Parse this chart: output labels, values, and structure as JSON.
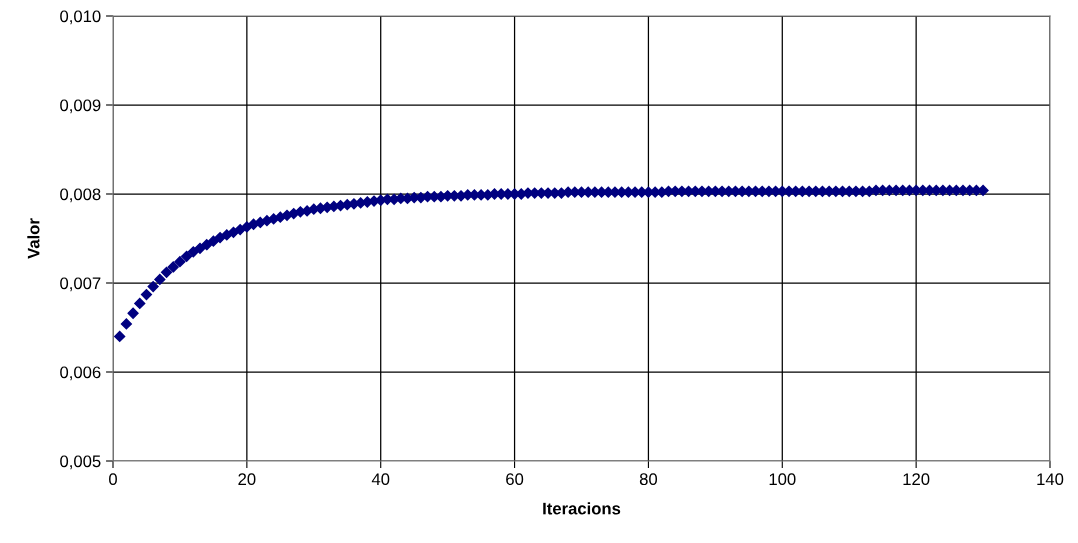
{
  "chart_data": {
    "type": "scatter",
    "xlabel": "Iteracions",
    "ylabel": "Valor",
    "x": [
      1,
      2,
      3,
      4,
      5,
      6,
      7,
      8,
      9,
      10,
      11,
      12,
      13,
      14,
      15,
      16,
      17,
      18,
      19,
      20,
      21,
      22,
      23,
      24,
      25,
      26,
      27,
      28,
      29,
      30,
      31,
      32,
      33,
      34,
      35,
      36,
      37,
      38,
      39,
      40,
      41,
      42,
      43,
      44,
      45,
      46,
      47,
      48,
      49,
      50,
      51,
      52,
      53,
      54,
      55,
      56,
      57,
      58,
      59,
      60,
      61,
      62,
      63,
      64,
      65,
      66,
      67,
      68,
      69,
      70,
      71,
      72,
      73,
      74,
      75,
      76,
      77,
      78,
      79,
      80,
      81,
      82,
      83,
      84,
      85,
      86,
      87,
      88,
      89,
      90,
      91,
      92,
      93,
      94,
      95,
      96,
      97,
      98,
      99,
      100,
      101,
      102,
      103,
      104,
      105,
      106,
      107,
      108,
      109,
      110,
      111,
      112,
      113,
      114,
      115,
      116,
      117,
      118,
      119,
      120,
      121,
      122,
      123,
      124,
      125,
      126,
      127,
      128,
      129,
      130
    ],
    "series": [
      {
        "color": "#000080",
        "values": [
          0.0064,
          0.00654,
          0.00666,
          0.00677,
          0.00687,
          0.00696,
          0.00704,
          0.00712,
          0.00718,
          0.00724,
          0.0073,
          0.00735,
          0.00739,
          0.00743,
          0.00747,
          0.00751,
          0.00754,
          0.00757,
          0.0076,
          0.00763,
          0.00766,
          0.00768,
          0.0077,
          0.00772,
          0.00774,
          0.00776,
          0.00778,
          0.0078,
          0.00781,
          0.00783,
          0.00784,
          0.00785,
          0.00786,
          0.00787,
          0.00788,
          0.00789,
          0.0079,
          0.00791,
          0.00792,
          0.00793,
          0.00794,
          0.00794,
          0.00795,
          0.00795,
          0.00796,
          0.00796,
          0.00797,
          0.00797,
          0.00797,
          0.00798,
          0.00798,
          0.00798,
          0.00799,
          0.00799,
          0.00799,
          0.00799,
          0.008,
          0.008,
          0.008,
          0.008,
          0.008,
          0.00801,
          0.00801,
          0.00801,
          0.00801,
          0.00801,
          0.00801,
          0.00802,
          0.00802,
          0.00802,
          0.00802,
          0.00802,
          0.00802,
          0.00802,
          0.00802,
          0.00802,
          0.00802,
          0.00802,
          0.00802,
          0.00802,
          0.00802,
          0.00802,
          0.00803,
          0.00803,
          0.00803,
          0.00803,
          0.00803,
          0.00803,
          0.00803,
          0.00803,
          0.00803,
          0.00803,
          0.00803,
          0.00803,
          0.00803,
          0.00803,
          0.00803,
          0.00803,
          0.00803,
          0.00803,
          0.00803,
          0.00803,
          0.00803,
          0.00803,
          0.00803,
          0.00803,
          0.00803,
          0.00803,
          0.00803,
          0.00803,
          0.00803,
          0.00803,
          0.00803,
          0.00804,
          0.00804,
          0.00804,
          0.00804,
          0.00804,
          0.00804,
          0.00804,
          0.00804,
          0.00804,
          0.00804,
          0.00804,
          0.00804,
          0.00804,
          0.00804,
          0.00804,
          0.00804,
          0.00804
        ]
      }
    ],
    "marker": "diamond",
    "grid": true,
    "xlim": [
      0,
      140
    ],
    "xticks": [
      0,
      20,
      40,
      60,
      80,
      100,
      120,
      140
    ],
    "ylim": [
      0.005,
      0.01
    ],
    "yticks": [
      {
        "value": 0.005,
        "label": "0,005"
      },
      {
        "value": 0.006,
        "label": "0,006"
      },
      {
        "value": 0.007,
        "label": "0,007"
      },
      {
        "value": 0.008,
        "label": "0,008"
      },
      {
        "value": 0.009,
        "label": "0,009"
      },
      {
        "value": 0.01,
        "label": "0,010"
      }
    ]
  }
}
